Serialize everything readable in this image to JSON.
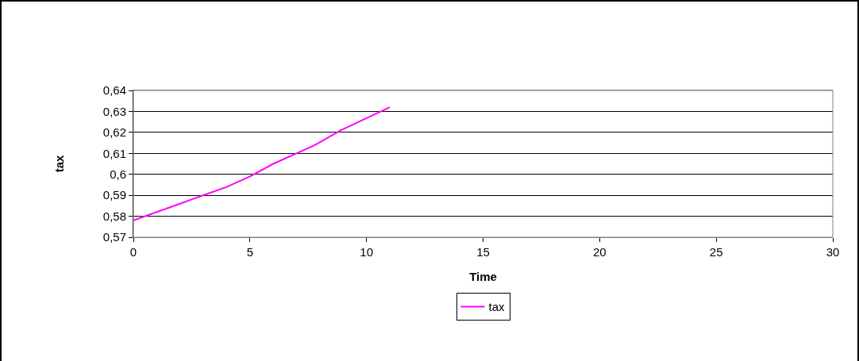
{
  "chart_data": {
    "type": "line",
    "xlabel": "Time",
    "ylabel": "tax",
    "x": [
      0,
      2,
      2.5,
      4,
      5,
      6,
      7.2,
      7.8,
      8.9,
      11
    ],
    "series": [
      {
        "name": "tax",
        "color": "#ff00ff",
        "values": [
          0.578,
          0.586,
          0.588,
          0.594,
          0.599,
          0.605,
          0.611,
          0.614,
          0.621,
          0.632
        ]
      }
    ],
    "xlim": [
      0,
      30
    ],
    "xticks": [
      0,
      5,
      10,
      15,
      20,
      25,
      30
    ],
    "ylim": [
      0.57,
      0.64
    ],
    "yticks": [
      {
        "value": 0.57,
        "label": "0,57"
      },
      {
        "value": 0.58,
        "label": "0,58"
      },
      {
        "value": 0.59,
        "label": "0,59"
      },
      {
        "value": 0.6,
        "label": "0,6"
      },
      {
        "value": 0.61,
        "label": "0,61"
      },
      {
        "value": 0.62,
        "label": "0,62"
      },
      {
        "value": 0.63,
        "label": "0,63"
      },
      {
        "value": 0.64,
        "label": "0,64"
      }
    ],
    "grid": "y",
    "legend": "bottom",
    "marker": "none",
    "line_style": "solid"
  }
}
